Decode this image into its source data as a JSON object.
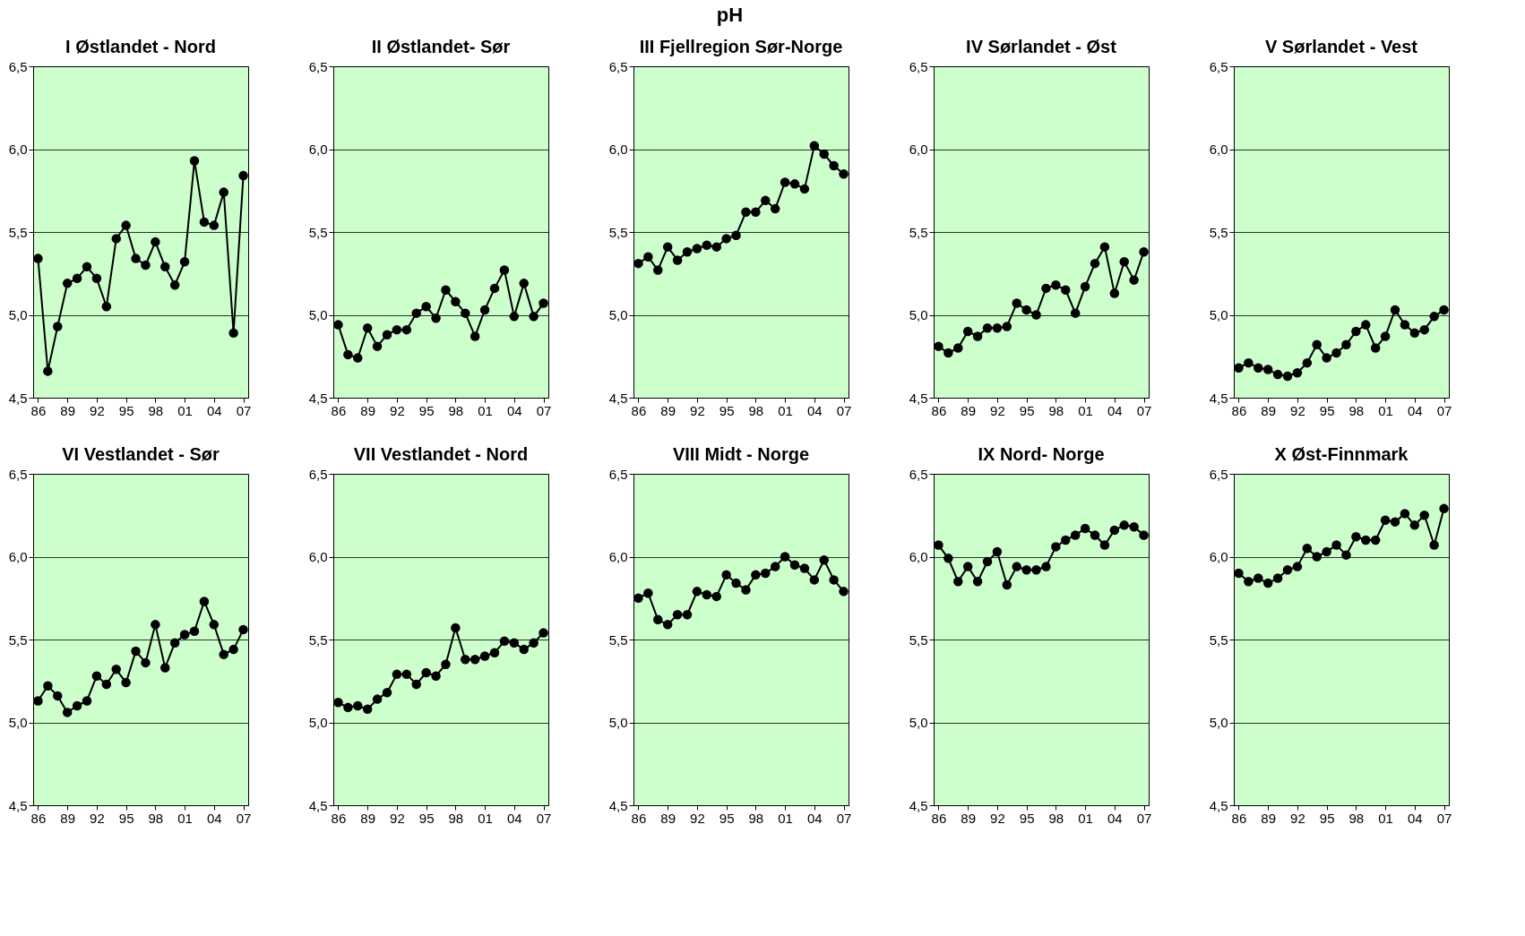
{
  "chart_data": [
    {
      "type": "line",
      "title": "I Østlandet - Nord",
      "annotations": [
        "pH"
      ],
      "x": [
        1986,
        1987,
        1988,
        1989,
        1990,
        1991,
        1992,
        1993,
        1994,
        1995,
        1996,
        1997,
        1998,
        1999,
        2000,
        2001,
        2002,
        2003,
        2004,
        2005,
        2006,
        2007
      ],
      "series": [
        {
          "color": "#000000",
          "values": [
            5.34,
            4.66,
            4.93,
            5.19,
            5.22,
            5.29,
            5.22,
            5.05,
            5.46,
            5.54,
            5.34,
            5.3,
            5.44,
            5.29,
            5.18,
            5.32,
            5.93,
            5.56,
            5.54,
            5.74,
            4.89,
            5.84
          ]
        }
      ],
      "xlim": [
        1985.5,
        2007.5
      ],
      "xticks": [
        {
          "value": 1986,
          "label": "86"
        },
        {
          "value": 1989,
          "label": "89"
        },
        {
          "value": 1992,
          "label": "92"
        },
        {
          "value": 1995,
          "label": "95"
        },
        {
          "value": 1998,
          "label": "98"
        },
        {
          "value": 2001,
          "label": "01"
        },
        {
          "value": 2004,
          "label": "04"
        },
        {
          "value": 2007,
          "label": "07"
        }
      ],
      "ylim": [
        4.5,
        6.5
      ],
      "yticks": [
        {
          "value": 4.5,
          "label": "4,5"
        },
        {
          "value": 5.0,
          "label": "5,0"
        },
        {
          "value": 5.5,
          "label": "5,5"
        },
        {
          "value": 6.0,
          "label": "6,0"
        },
        {
          "value": 6.5,
          "label": "6,5"
        }
      ],
      "grid": "y",
      "marker": "circle",
      "line_style": "solid"
    },
    {
      "type": "line",
      "title": "II Østlandet- Sør",
      "x": [
        1986,
        1987,
        1988,
        1989,
        1990,
        1991,
        1992,
        1993,
        1994,
        1995,
        1996,
        1997,
        1998,
        1999,
        2000,
        2001,
        2002,
        2003,
        2004,
        2005,
        2006,
        2007
      ],
      "series": [
        {
          "color": "#000000",
          "values": [
            4.94,
            4.76,
            4.74,
            4.92,
            4.81,
            4.88,
            4.91,
            4.91,
            5.01,
            5.05,
            4.98,
            5.15,
            5.08,
            5.01,
            4.87,
            5.03,
            5.16,
            5.27,
            4.99,
            5.19,
            4.99,
            5.07
          ]
        }
      ],
      "xlim": [
        1985.5,
        2007.5
      ],
      "xticks": [
        {
          "value": 1986,
          "label": "86"
        },
        {
          "value": 1989,
          "label": "89"
        },
        {
          "value": 1992,
          "label": "92"
        },
        {
          "value": 1995,
          "label": "95"
        },
        {
          "value": 1998,
          "label": "98"
        },
        {
          "value": 2001,
          "label": "01"
        },
        {
          "value": 2004,
          "label": "04"
        },
        {
          "value": 2007,
          "label": "07"
        }
      ],
      "ylim": [
        4.5,
        6.5
      ],
      "yticks": [
        {
          "value": 4.5,
          "label": "4,5"
        },
        {
          "value": 5.0,
          "label": "5,0"
        },
        {
          "value": 5.5,
          "label": "5,5"
        },
        {
          "value": 6.0,
          "label": "6,0"
        },
        {
          "value": 6.5,
          "label": "6,5"
        }
      ],
      "grid": "y",
      "marker": "circle",
      "line_style": "solid"
    },
    {
      "type": "line",
      "title": "III Fjellregion Sør-Norge",
      "x": [
        1986,
        1987,
        1988,
        1989,
        1990,
        1991,
        1992,
        1993,
        1994,
        1995,
        1996,
        1997,
        1998,
        1999,
        2000,
        2001,
        2002,
        2003,
        2004,
        2005,
        2006,
        2007
      ],
      "series": [
        {
          "color": "#000000",
          "values": [
            5.31,
            5.35,
            5.27,
            5.41,
            5.33,
            5.38,
            5.4,
            5.42,
            5.41,
            5.46,
            5.48,
            5.62,
            5.62,
            5.69,
            5.64,
            5.8,
            5.79,
            5.76,
            6.02,
            5.97,
            5.9,
            5.85
          ]
        }
      ],
      "xlim": [
        1985.5,
        2007.5
      ],
      "xticks": [
        {
          "value": 1986,
          "label": "86"
        },
        {
          "value": 1989,
          "label": "89"
        },
        {
          "value": 1992,
          "label": "92"
        },
        {
          "value": 1995,
          "label": "95"
        },
        {
          "value": 1998,
          "label": "98"
        },
        {
          "value": 2001,
          "label": "01"
        },
        {
          "value": 2004,
          "label": "04"
        },
        {
          "value": 2007,
          "label": "07"
        }
      ],
      "ylim": [
        4.5,
        6.5
      ],
      "yticks": [
        {
          "value": 4.5,
          "label": "4,5"
        },
        {
          "value": 5.0,
          "label": "5,0"
        },
        {
          "value": 5.5,
          "label": "5,5"
        },
        {
          "value": 6.0,
          "label": "6,0"
        },
        {
          "value": 6.5,
          "label": "6,5"
        }
      ],
      "grid": "y",
      "marker": "circle",
      "line_style": "solid"
    },
    {
      "type": "line",
      "title": "IV Sørlandet - Øst",
      "x": [
        1986,
        1987,
        1988,
        1989,
        1990,
        1991,
        1992,
        1993,
        1994,
        1995,
        1996,
        1997,
        1998,
        1999,
        2000,
        2001,
        2002,
        2003,
        2004,
        2005,
        2006,
        2007
      ],
      "series": [
        {
          "color": "#000000",
          "values": [
            4.81,
            4.77,
            4.8,
            4.9,
            4.87,
            4.92,
            4.92,
            4.93,
            5.07,
            5.03,
            5.0,
            5.16,
            5.18,
            5.15,
            5.01,
            5.17,
            5.31,
            5.41,
            5.13,
            5.32,
            5.21,
            5.38
          ]
        }
      ],
      "xlim": [
        1985.5,
        2007.5
      ],
      "xticks": [
        {
          "value": 1986,
          "label": "86"
        },
        {
          "value": 1989,
          "label": "89"
        },
        {
          "value": 1992,
          "label": "92"
        },
        {
          "value": 1995,
          "label": "95"
        },
        {
          "value": 1998,
          "label": "98"
        },
        {
          "value": 2001,
          "label": "01"
        },
        {
          "value": 2004,
          "label": "04"
        },
        {
          "value": 2007,
          "label": "07"
        }
      ],
      "ylim": [
        4.5,
        6.5
      ],
      "yticks": [
        {
          "value": 4.5,
          "label": "4,5"
        },
        {
          "value": 5.0,
          "label": "5,0"
        },
        {
          "value": 5.5,
          "label": "5,5"
        },
        {
          "value": 6.0,
          "label": "6,0"
        },
        {
          "value": 6.5,
          "label": "6,5"
        }
      ],
      "grid": "y",
      "marker": "circle",
      "line_style": "solid"
    },
    {
      "type": "line",
      "title": "V Sørlandet - Vest",
      "x": [
        1986,
        1987,
        1988,
        1989,
        1990,
        1991,
        1992,
        1993,
        1994,
        1995,
        1996,
        1997,
        1998,
        1999,
        2000,
        2001,
        2002,
        2003,
        2004,
        2005,
        2006,
        2007
      ],
      "series": [
        {
          "color": "#000000",
          "values": [
            4.68,
            4.71,
            4.68,
            4.67,
            4.64,
            4.63,
            4.65,
            4.71,
            4.82,
            4.74,
            4.77,
            4.82,
            4.9,
            4.94,
            4.8,
            4.87,
            5.03,
            4.94,
            4.89,
            4.91,
            4.99,
            5.03
          ]
        }
      ],
      "xlim": [
        1985.5,
        2007.5
      ],
      "xticks": [
        {
          "value": 1986,
          "label": "86"
        },
        {
          "value": 1989,
          "label": "89"
        },
        {
          "value": 1992,
          "label": "92"
        },
        {
          "value": 1995,
          "label": "95"
        },
        {
          "value": 1998,
          "label": "98"
        },
        {
          "value": 2001,
          "label": "01"
        },
        {
          "value": 2004,
          "label": "04"
        },
        {
          "value": 2007,
          "label": "07"
        }
      ],
      "ylim": [
        4.5,
        6.5
      ],
      "yticks": [
        {
          "value": 4.5,
          "label": "4,5"
        },
        {
          "value": 5.0,
          "label": "5,0"
        },
        {
          "value": 5.5,
          "label": "5,5"
        },
        {
          "value": 6.0,
          "label": "6,0"
        },
        {
          "value": 6.5,
          "label": "6,5"
        }
      ],
      "grid": "y",
      "marker": "circle",
      "line_style": "solid"
    },
    {
      "type": "line",
      "title": "VI Vestlandet - Sør",
      "x": [
        1986,
        1987,
        1988,
        1989,
        1990,
        1991,
        1992,
        1993,
        1994,
        1995,
        1996,
        1997,
        1998,
        1999,
        2000,
        2001,
        2002,
        2003,
        2004,
        2005,
        2006,
        2007
      ],
      "series": [
        {
          "color": "#000000",
          "values": [
            5.13,
            5.22,
            5.16,
            5.06,
            5.1,
            5.13,
            5.28,
            5.23,
            5.32,
            5.24,
            5.43,
            5.36,
            5.59,
            5.33,
            5.48,
            5.53,
            5.55,
            5.73,
            5.59,
            5.41,
            5.44,
            5.56
          ]
        }
      ],
      "xlim": [
        1985.5,
        2007.5
      ],
      "xticks": [
        {
          "value": 1986,
          "label": "86"
        },
        {
          "value": 1989,
          "label": "89"
        },
        {
          "value": 1992,
          "label": "92"
        },
        {
          "value": 1995,
          "label": "95"
        },
        {
          "value": 1998,
          "label": "98"
        },
        {
          "value": 2001,
          "label": "01"
        },
        {
          "value": 2004,
          "label": "04"
        },
        {
          "value": 2007,
          "label": "07"
        }
      ],
      "ylim": [
        4.5,
        6.5
      ],
      "yticks": [
        {
          "value": 4.5,
          "label": "4,5"
        },
        {
          "value": 5.0,
          "label": "5,0"
        },
        {
          "value": 5.5,
          "label": "5,5"
        },
        {
          "value": 6.0,
          "label": "6,0"
        },
        {
          "value": 6.5,
          "label": "6,5"
        }
      ],
      "grid": "y",
      "marker": "circle",
      "line_style": "solid"
    },
    {
      "type": "line",
      "title": "VII Vestlandet - Nord",
      "x": [
        1986,
        1987,
        1988,
        1989,
        1990,
        1991,
        1992,
        1993,
        1994,
        1995,
        1996,
        1997,
        1998,
        1999,
        2000,
        2001,
        2002,
        2003,
        2004,
        2005,
        2006,
        2007
      ],
      "series": [
        {
          "color": "#000000",
          "values": [
            5.12,
            5.09,
            5.1,
            5.08,
            5.14,
            5.18,
            5.29,
            5.29,
            5.23,
            5.3,
            5.28,
            5.35,
            5.57,
            5.38,
            5.38,
            5.4,
            5.42,
            5.49,
            5.48,
            5.44,
            5.48,
            5.54
          ]
        }
      ],
      "xlim": [
        1985.5,
        2007.5
      ],
      "xticks": [
        {
          "value": 1986,
          "label": "86"
        },
        {
          "value": 1989,
          "label": "89"
        },
        {
          "value": 1992,
          "label": "92"
        },
        {
          "value": 1995,
          "label": "95"
        },
        {
          "value": 1998,
          "label": "98"
        },
        {
          "value": 2001,
          "label": "01"
        },
        {
          "value": 2004,
          "label": "04"
        },
        {
          "value": 2007,
          "label": "07"
        }
      ],
      "ylim": [
        4.5,
        6.5
      ],
      "yticks": [
        {
          "value": 4.5,
          "label": "4,5"
        },
        {
          "value": 5.0,
          "label": "5,0"
        },
        {
          "value": 5.5,
          "label": "5,5"
        },
        {
          "value": 6.0,
          "label": "6,0"
        },
        {
          "value": 6.5,
          "label": "6,5"
        }
      ],
      "grid": "y",
      "marker": "circle",
      "line_style": "solid"
    },
    {
      "type": "line",
      "title": "VIII Midt - Norge",
      "x": [
        1986,
        1987,
        1988,
        1989,
        1990,
        1991,
        1992,
        1993,
        1994,
        1995,
        1996,
        1997,
        1998,
        1999,
        2000,
        2001,
        2002,
        2003,
        2004,
        2005,
        2006,
        2007
      ],
      "series": [
        {
          "color": "#000000",
          "values": [
            5.75,
            5.78,
            5.62,
            5.59,
            5.65,
            5.65,
            5.79,
            5.77,
            5.76,
            5.89,
            5.84,
            5.8,
            5.89,
            5.9,
            5.94,
            6.0,
            5.95,
            5.93,
            5.86,
            5.98,
            5.86,
            5.79
          ]
        }
      ],
      "xlim": [
        1985.5,
        2007.5
      ],
      "xticks": [
        {
          "value": 1986,
          "label": "86"
        },
        {
          "value": 1989,
          "label": "89"
        },
        {
          "value": 1992,
          "label": "92"
        },
        {
          "value": 1995,
          "label": "95"
        },
        {
          "value": 1998,
          "label": "98"
        },
        {
          "value": 2001,
          "label": "01"
        },
        {
          "value": 2004,
          "label": "04"
        },
        {
          "value": 2007,
          "label": "07"
        }
      ],
      "ylim": [
        4.5,
        6.5
      ],
      "yticks": [
        {
          "value": 4.5,
          "label": "4,5"
        },
        {
          "value": 5.0,
          "label": "5,0"
        },
        {
          "value": 5.5,
          "label": "5,5"
        },
        {
          "value": 6.0,
          "label": "6,0"
        },
        {
          "value": 6.5,
          "label": "6,5"
        }
      ],
      "grid": "y",
      "marker": "circle",
      "line_style": "solid"
    },
    {
      "type": "line",
      "title": "IX Nord- Norge",
      "x": [
        1986,
        1987,
        1988,
        1989,
        1990,
        1991,
        1992,
        1993,
        1994,
        1995,
        1996,
        1997,
        1998,
        1999,
        2000,
        2001,
        2002,
        2003,
        2004,
        2005,
        2006,
        2007
      ],
      "series": [
        {
          "color": "#000000",
          "values": [
            6.07,
            5.99,
            5.85,
            5.94,
            5.85,
            5.97,
            6.03,
            5.83,
            5.94,
            5.92,
            5.92,
            5.94,
            6.06,
            6.1,
            6.13,
            6.17,
            6.13,
            6.07,
            6.16,
            6.19,
            6.18,
            6.13
          ]
        }
      ],
      "xlim": [
        1985.5,
        2007.5
      ],
      "xticks": [
        {
          "value": 1986,
          "label": "86"
        },
        {
          "value": 1989,
          "label": "89"
        },
        {
          "value": 1992,
          "label": "92"
        },
        {
          "value": 1995,
          "label": "95"
        },
        {
          "value": 1998,
          "label": "98"
        },
        {
          "value": 2001,
          "label": "01"
        },
        {
          "value": 2004,
          "label": "04"
        },
        {
          "value": 2007,
          "label": "07"
        }
      ],
      "ylim": [
        4.5,
        6.5
      ],
      "yticks": [
        {
          "value": 4.5,
          "label": "4,5"
        },
        {
          "value": 5.0,
          "label": "5,0"
        },
        {
          "value": 5.5,
          "label": "5,5"
        },
        {
          "value": 6.0,
          "label": "6,0"
        },
        {
          "value": 6.5,
          "label": "6,5"
        }
      ],
      "grid": "y",
      "marker": "circle",
      "line_style": "solid"
    },
    {
      "type": "line",
      "title": "X Øst-Finnmark",
      "x": [
        1986,
        1987,
        1988,
        1989,
        1990,
        1991,
        1992,
        1993,
        1994,
        1995,
        1996,
        1997,
        1998,
        1999,
        2000,
        2001,
        2002,
        2003,
        2004,
        2005,
        2006,
        2007
      ],
      "series": [
        {
          "color": "#000000",
          "values": [
            5.9,
            5.85,
            5.87,
            5.84,
            5.87,
            5.92,
            5.94,
            6.05,
            6.0,
            6.03,
            6.07,
            6.01,
            6.12,
            6.1,
            6.1,
            6.22,
            6.21,
            6.26,
            6.19,
            6.25,
            6.07,
            6.29
          ]
        }
      ],
      "xlim": [
        1985.5,
        2007.5
      ],
      "xticks": [
        {
          "value": 1986,
          "label": "86"
        },
        {
          "value": 1989,
          "label": "89"
        },
        {
          "value": 1992,
          "label": "92"
        },
        {
          "value": 1995,
          "label": "95"
        },
        {
          "value": 1998,
          "label": "98"
        },
        {
          "value": 2001,
          "label": "01"
        },
        {
          "value": 2004,
          "label": "04"
        },
        {
          "value": 2007,
          "label": "07"
        }
      ],
      "ylim": [
        4.5,
        6.5
      ],
      "yticks": [
        {
          "value": 4.5,
          "label": "4,5"
        },
        {
          "value": 5.0,
          "label": "5,0"
        },
        {
          "value": 5.5,
          "label": "5,5"
        },
        {
          "value": 6.0,
          "label": "6,0"
        },
        {
          "value": 6.5,
          "label": "6,5"
        }
      ],
      "grid": "y",
      "marker": "circle",
      "line_style": "solid"
    }
  ]
}
